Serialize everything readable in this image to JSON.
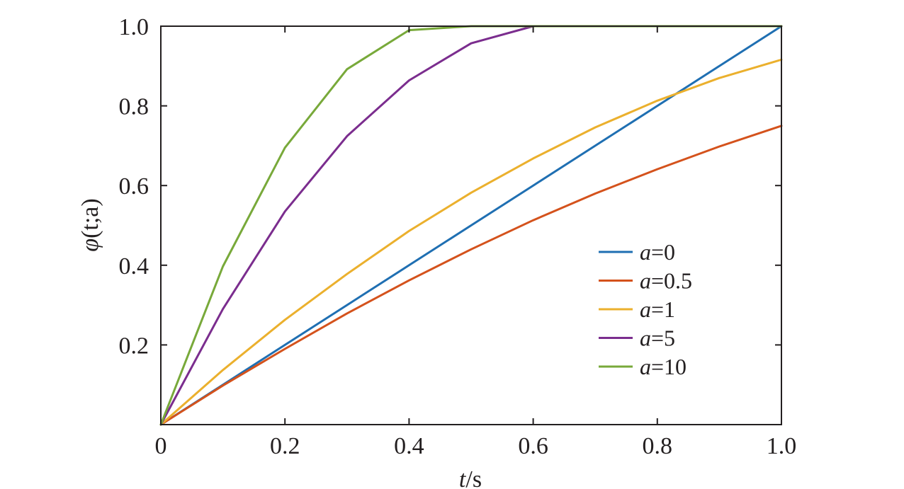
{
  "chart_data": {
    "type": "line",
    "title": "",
    "xlabel": {
      "var": "t",
      "unit": "/s"
    },
    "ylabel": {
      "func": "φ",
      "args": "(t;a)"
    },
    "xlim": [
      0,
      1.0
    ],
    "ylim": [
      0,
      1.0
    ],
    "x_ticks": [
      "0",
      "0.2",
      "0.4",
      "0.6",
      "0.8",
      "1.0"
    ],
    "y_ticks": [
      "0.2",
      "0.4",
      "0.6",
      "0.8",
      "1.0"
    ],
    "grid": false,
    "legend_position": "center-right",
    "x": [
      0,
      0.1,
      0.2,
      0.3,
      0.4,
      0.5,
      0.6,
      0.7,
      0.8,
      0.9,
      1.0
    ],
    "series": [
      {
        "name_var": "a",
        "name_value": "=0",
        "color": "#1f6fb2",
        "values": [
          0,
          0.1,
          0.2,
          0.3,
          0.4,
          0.5,
          0.6,
          0.7,
          0.8,
          0.9,
          1.0
        ]
      },
      {
        "name_var": "a",
        "name_value": "=0.5",
        "color": "#d4521c",
        "values": [
          0,
          0.098,
          0.19,
          0.279,
          0.362,
          0.44,
          0.513,
          0.58,
          0.641,
          0.698,
          0.75
        ]
      },
      {
        "name_var": "a",
        "name_value": "=1",
        "color": "#ebb02d",
        "values": [
          0,
          0.137,
          0.263,
          0.378,
          0.486,
          0.582,
          0.668,
          0.746,
          0.813,
          0.87,
          0.916
        ]
      },
      {
        "name_var": "a",
        "name_value": "=5",
        "color": "#7b2d8e",
        "values": [
          0,
          0.29,
          0.535,
          0.724,
          0.864,
          0.957,
          1.0,
          1.0,
          1.0,
          1.0,
          1.0
        ]
      },
      {
        "name_var": "a",
        "name_value": "=10",
        "color": "#78a93a",
        "values": [
          0,
          0.397,
          0.695,
          0.892,
          0.99,
          1.0,
          1.0,
          1.0,
          1.0,
          1.0,
          1.0
        ]
      }
    ]
  }
}
